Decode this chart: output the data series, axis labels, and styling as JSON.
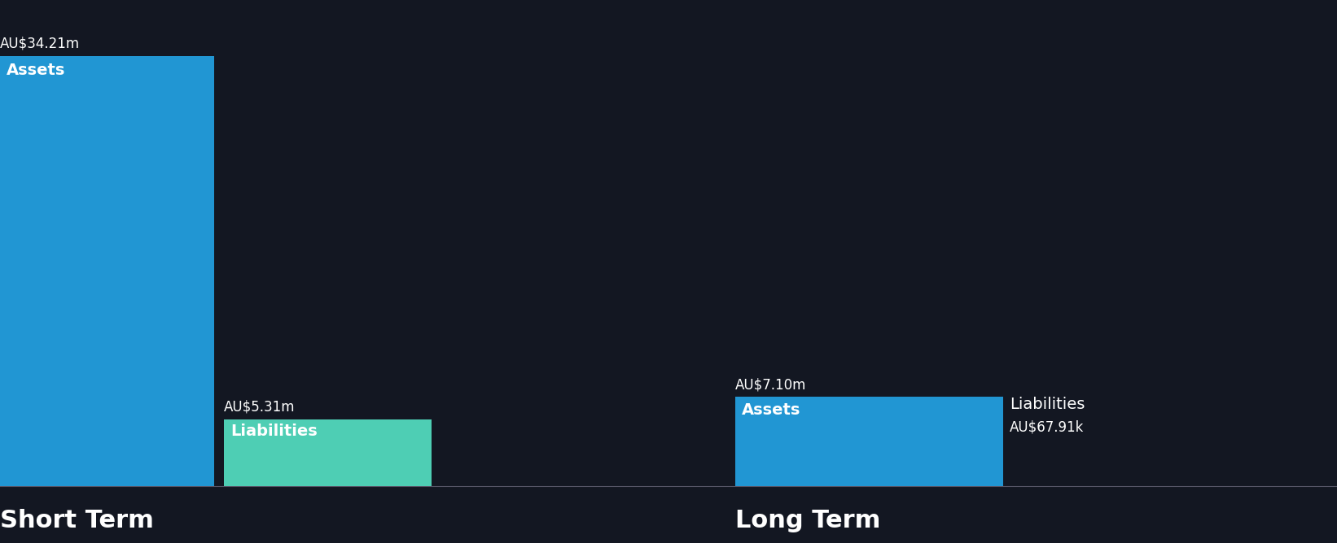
{
  "background_color": "#131722",
  "short_term": {
    "assets_value": 34.21,
    "assets_label": "Assets",
    "assets_value_label": "AU$34.21m",
    "assets_color": "#2196d3",
    "liabilities_value": 5.31,
    "liabilities_label": "Liabilities",
    "liabilities_value_label": "AU$5.31m",
    "liabilities_color": "#4eceb4",
    "section_label": "Short Term"
  },
  "long_term": {
    "assets_value": 7.1,
    "assets_label": "Assets",
    "assets_value_label": "AU$7.10m",
    "assets_color": "#2196d3",
    "liabilities_value": 0.06791,
    "liabilities_label": "Liabilities",
    "liabilities_value_label": "AU$67.91k",
    "liabilities_color": "#2196d3",
    "section_label": "Long Term"
  },
  "text_color": "#ffffff",
  "label_fontsize": 14,
  "value_fontsize": 12,
  "section_fontsize": 22,
  "baseline_color": "#555566"
}
